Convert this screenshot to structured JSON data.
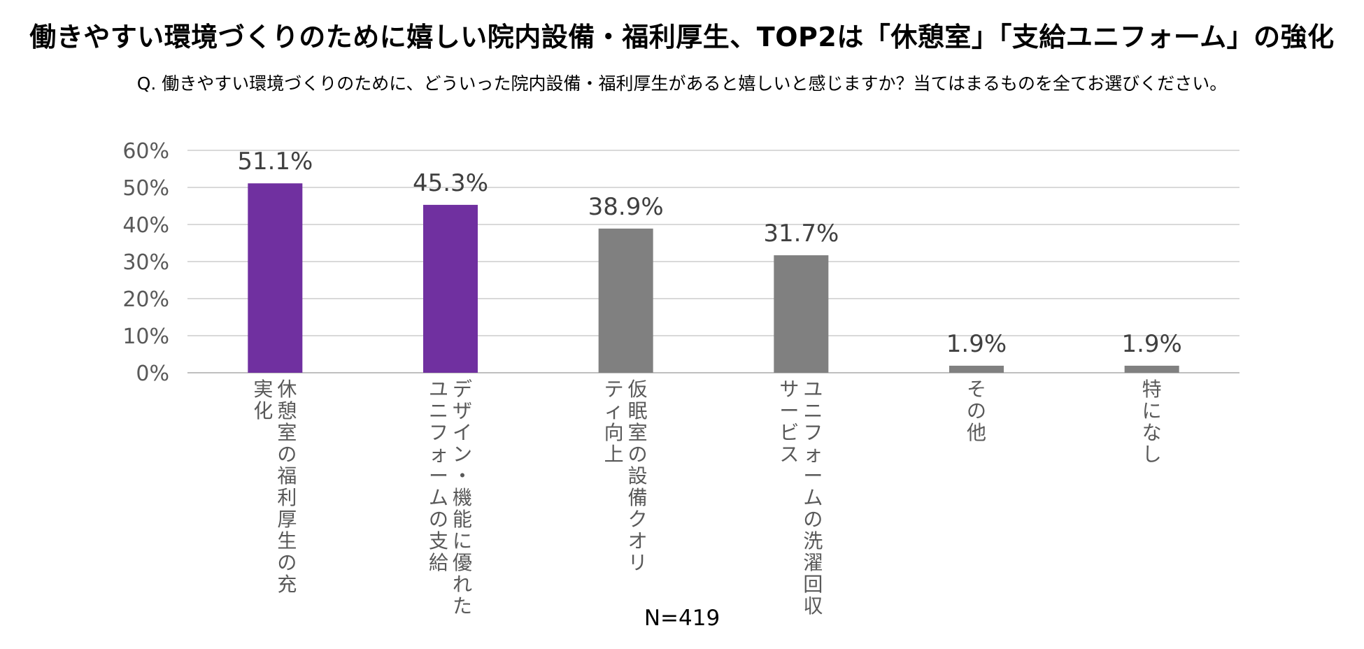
{
  "title": "働きやすい環境づくりのために嬉しい院内設備・福利厚生、TOP2は「休憩室」「支給ユニフォーム」の強化",
  "question": "Q. 働きやすい環境づくりのために、どういった院内設備・福利厚生があると嬉しいと感じますか？当てはまるものを全てお選びください。",
  "sample_size": "N=419",
  "colors": {
    "highlight": "#7030a0",
    "normal": "#808080",
    "grid": "#d9d9d9",
    "axis": "#bfbfbf"
  },
  "chart_data": {
    "type": "bar",
    "title": "働きやすい環境づくりのために嬉しい院内設備・福利厚生、TOP2は「休憩室」「支給ユニフォーム」の強化",
    "xlabel": "",
    "ylabel": "",
    "ylim": [
      0,
      60
    ],
    "yticks": [
      "0%",
      "10%",
      "20%",
      "30%",
      "40%",
      "50%",
      "60%"
    ],
    "ytick_values": [
      0,
      10,
      20,
      30,
      40,
      50,
      60
    ],
    "categories": [
      [
        "休憩室の福利厚生の充",
        "実化"
      ],
      [
        "デザイン・機能に優れた",
        "ユニフォームの支給"
      ],
      [
        "仮眠室の設備クオリ",
        "ティ向上"
      ],
      [
        "ユニフォームの洗濯回収",
        "サービス"
      ],
      [
        "その他"
      ],
      [
        "特になし"
      ]
    ],
    "values": [
      51.1,
      45.3,
      38.9,
      31.7,
      1.9,
      1.9
    ],
    "value_labels": [
      "51.1%",
      "45.3%",
      "38.9%",
      "31.7%",
      "1.9%",
      "1.9%"
    ],
    "highlighted": [
      true,
      true,
      false,
      false,
      false,
      false
    ],
    "grid": true,
    "legend": "none"
  }
}
